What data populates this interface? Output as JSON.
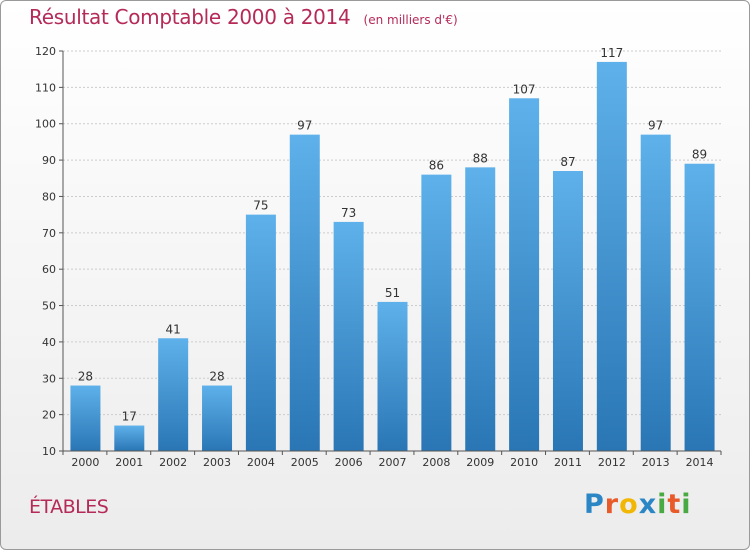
{
  "chart_data": {
    "type": "bar",
    "title": "Résultat Comptable 2000 à 2014",
    "subtitle": "(en milliers d'€)",
    "categories": [
      "2000",
      "2001",
      "2002",
      "2003",
      "2004",
      "2005",
      "2006",
      "2007",
      "2008",
      "2009",
      "2010",
      "2011",
      "2012",
      "2013",
      "2014"
    ],
    "values": [
      28,
      17,
      41,
      28,
      75,
      97,
      73,
      51,
      86,
      88,
      107,
      87,
      117,
      97,
      89
    ],
    "ylim": [
      10,
      120
    ],
    "yticks": [
      10,
      20,
      30,
      40,
      50,
      60,
      70,
      80,
      90,
      100,
      110,
      120
    ],
    "grid": true,
    "bar_color_top": "#5eb1ea",
    "bar_color_bottom": "#2a76b5"
  },
  "footer": {
    "commune": "ÉTABLES",
    "logo_letters": [
      "P",
      "r",
      "o",
      "x",
      "i",
      "t",
      "i"
    ],
    "logo_colors": [
      "#2b86c5",
      "#e85a2a",
      "#f2b705",
      "#2b86c5",
      "#49a942",
      "#e85a2a",
      "#49a942"
    ]
  },
  "colors": {
    "title": "#b52a57",
    "grid": "#cccccc"
  }
}
